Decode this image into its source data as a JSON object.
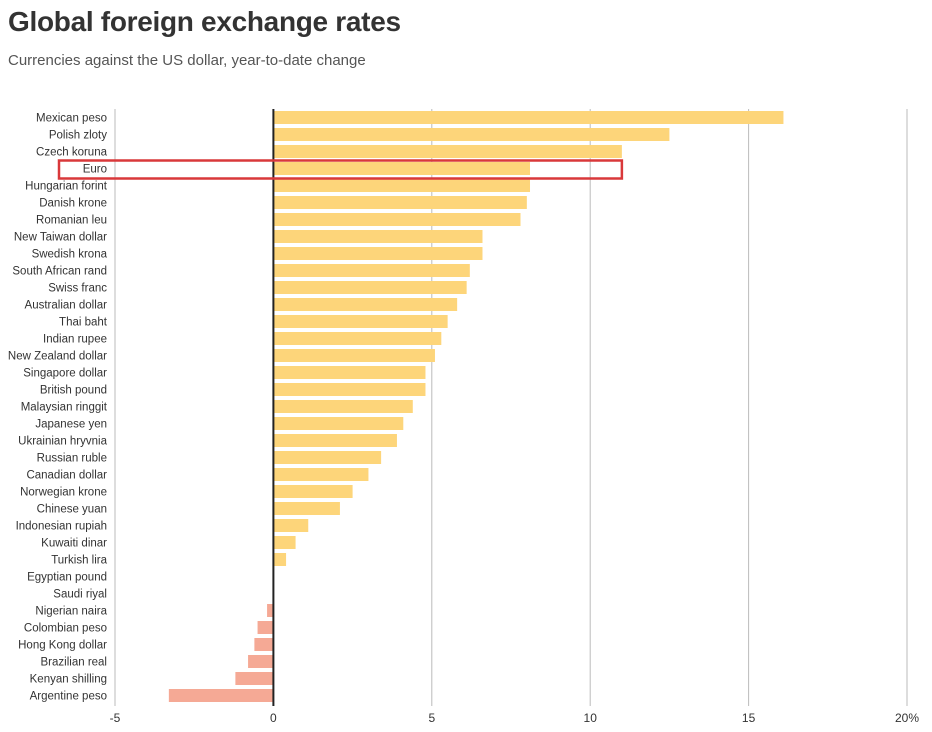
{
  "chart_data": {
    "type": "bar",
    "orientation": "horizontal",
    "title": "Global foreign exchange rates",
    "subtitle": "Currencies against the US dollar, year-to-date change",
    "categories": [
      "Mexican peso",
      "Polish zloty",
      "Czech koruna",
      "Euro",
      "Hungarian forint",
      "Danish krone",
      "Romanian leu",
      "New Taiwan dollar",
      "Swedish krona",
      "South African rand",
      "Swiss franc",
      "Australian dollar",
      "Thai baht",
      "Indian rupee",
      "New Zealand dollar",
      "Singapore dollar",
      "British pound",
      "Malaysian ringgit",
      "Japanese yen",
      "Ukrainian hryvnia",
      "Russian ruble",
      "Canadian dollar",
      "Norwegian krone",
      "Chinese yuan",
      "Indonesian rupiah",
      "Kuwaiti dinar",
      "Turkish lira",
      "Egyptian pound",
      "Saudi riyal",
      "Nigerian naira",
      "Colombian peso",
      "Hong Kong dollar",
      "Brazilian real",
      "Kenyan shilling",
      "Argentine peso"
    ],
    "values": [
      16.1,
      12.5,
      11.0,
      8.1,
      8.1,
      8.0,
      7.8,
      6.6,
      6.6,
      6.2,
      6.1,
      5.8,
      5.5,
      5.3,
      5.1,
      4.8,
      4.8,
      4.4,
      4.1,
      3.9,
      3.4,
      3.0,
      2.5,
      2.1,
      1.1,
      0.7,
      0.4,
      0.0,
      0.0,
      -0.2,
      -0.5,
      -0.6,
      -0.8,
      -1.2,
      -3.3
    ],
    "xlim": [
      -5,
      20
    ],
    "xticks": [
      "-5",
      "0",
      "5",
      "10",
      "15",
      "20%"
    ],
    "xtick_values": [
      -5,
      0,
      5,
      10,
      15,
      20
    ],
    "grid": true,
    "legend": "none",
    "highlight": "Euro",
    "colors": {
      "positive": "#FDD57A",
      "negative": "#F5A995",
      "highlight_box": "#D9383A",
      "grid": "#BBBBBB",
      "zero_line": "#222222"
    }
  }
}
